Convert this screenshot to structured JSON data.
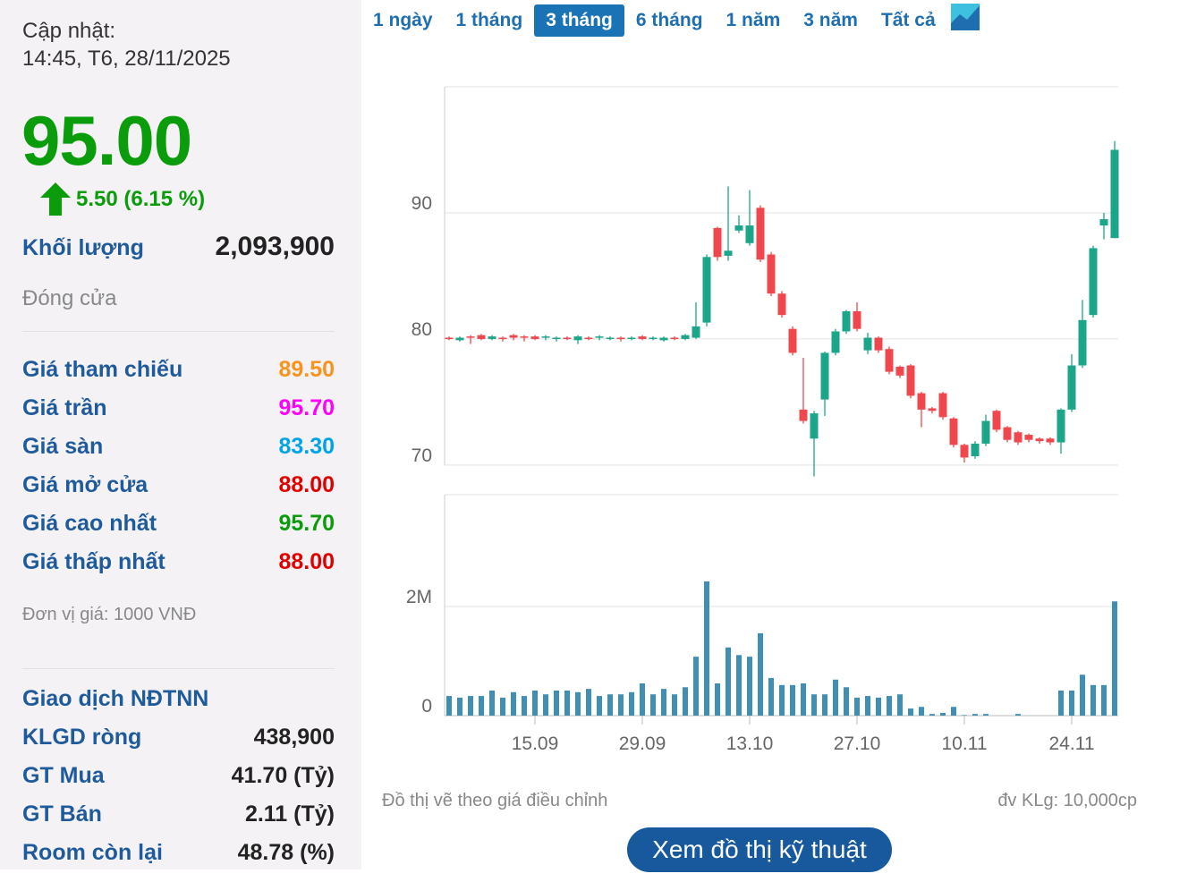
{
  "sidebar": {
    "update_label": "Cập nhật:",
    "update_time": "14:45, T6, 28/11/2025",
    "price": "95.00",
    "change": "5.50 (6.15 %)",
    "volume_label": "Khối lượng",
    "volume": "2,093,900",
    "status": "Đóng cửa",
    "prices": [
      {
        "label": "Giá tham chiếu",
        "value": "89.50",
        "color": "#f7941d"
      },
      {
        "label": "Giá trần",
        "value": "95.70",
        "color": "#ff00ff"
      },
      {
        "label": "Giá sàn",
        "value": "83.30",
        "color": "#00a3e6"
      },
      {
        "label": "Giá mở cửa",
        "value": "88.00",
        "color": "#e00000"
      },
      {
        "label": "Giá cao nhất",
        "value": "95.70",
        "color": "#0a9c0a"
      },
      {
        "label": "Giá thấp nhất",
        "value": "88.00",
        "color": "#e00000"
      }
    ],
    "unit_note": "Đơn vị giá: 1000 VNĐ",
    "foreign_title": "Giao dịch NĐTNN",
    "foreign": [
      {
        "label": "KLGD ròng",
        "value": "438,900"
      },
      {
        "label": "GT Mua",
        "value": "41.70 (Tỷ)"
      },
      {
        "label": "GT Bán",
        "value": "2.11 (Tỷ)"
      },
      {
        "label": "Room còn lại",
        "value": "48.78 (%)"
      }
    ]
  },
  "tabs": {
    "items": [
      "1 ngày",
      "1 tháng",
      "3 tháng",
      "6 tháng",
      "1 năm",
      "3 năm",
      "Tất cả"
    ],
    "active": 2
  },
  "chart_data": {
    "type": "candlestick",
    "categories": [
      null,
      null,
      null,
      null,
      null,
      null,
      null,
      null,
      "15.09",
      null,
      null,
      null,
      null,
      null,
      null,
      null,
      null,
      null,
      "29.09",
      null,
      null,
      null,
      null,
      null,
      null,
      null,
      null,
      null,
      "13.10",
      null,
      null,
      null,
      null,
      null,
      null,
      null,
      null,
      null,
      "27.10",
      null,
      null,
      null,
      null,
      null,
      null,
      null,
      null,
      null,
      "10.11",
      null,
      null,
      null,
      null,
      null,
      null,
      null,
      null,
      null,
      "24.11",
      null,
      null,
      null,
      null
    ],
    "open": [
      80.1,
      79.9,
      80.2,
      80.3,
      80.0,
      80.1,
      80.3,
      80.2,
      80.2,
      80.1,
      80.0,
      80.1,
      79.9,
      80.1,
      80.1,
      80.0,
      80.1,
      80.0,
      80.2,
      80.0,
      79.9,
      80.1,
      80.0,
      80.1,
      81.3,
      88.8,
      86.6,
      88.6,
      87.6,
      90.4,
      86.7,
      83.6,
      80.8,
      74.4,
      72.1,
      75.2,
      78.9,
      80.6,
      82.2,
      79.1,
      80.1,
      79.2,
      77.8,
      77.9,
      75.7,
      74.5,
      75.7,
      73.7,
      71.6,
      70.7,
      71.7,
      74.3,
      73.0,
      72.6,
      72.4,
      72.1,
      72.1,
      71.8,
      74.4,
      77.9,
      81.9,
      89.0,
      88.0
    ],
    "high": [
      80.2,
      80.2,
      80.3,
      80.4,
      80.3,
      80.2,
      80.4,
      80.3,
      80.3,
      80.3,
      80.2,
      80.2,
      80.3,
      80.2,
      80.3,
      80.2,
      80.2,
      80.2,
      80.3,
      80.2,
      80.2,
      80.2,
      80.4,
      82.9,
      86.7,
      88.9,
      92.1,
      89.8,
      91.8,
      90.6,
      86.9,
      83.8,
      81.0,
      78.5,
      74.3,
      79.0,
      80.8,
      82.3,
      82.9,
      80.5,
      80.2,
      79.4,
      77.9,
      78.0,
      75.8,
      74.6,
      75.8,
      73.8,
      71.7,
      71.9,
      74.0,
      74.4,
      73.1,
      72.7,
      72.5,
      72.2,
      72.2,
      74.5,
      78.8,
      83.1,
      87.4,
      90.0,
      95.7
    ],
    "low": [
      79.9,
      79.8,
      79.6,
      79.9,
      79.9,
      79.8,
      79.9,
      79.8,
      79.9,
      79.9,
      79.8,
      79.9,
      79.6,
      79.9,
      79.9,
      79.9,
      79.8,
      79.9,
      79.9,
      79.9,
      79.8,
      79.9,
      79.9,
      80.0,
      81.0,
      86.2,
      86.2,
      88.4,
      87.4,
      86.1,
      83.4,
      81.7,
      78.7,
      73.3,
      69.1,
      73.9,
      78.7,
      80.4,
      80.6,
      78.8,
      78.9,
      77.2,
      76.9,
      75.3,
      73.0,
      74.1,
      73.6,
      71.4,
      70.2,
      70.5,
      71.5,
      72.6,
      71.8,
      71.6,
      71.8,
      71.7,
      71.6,
      70.9,
      74.2,
      77.7,
      81.7,
      87.9,
      88.0
    ],
    "close": [
      80.0,
      80.1,
      80.1,
      80.0,
      80.2,
      80.0,
      80.1,
      80.1,
      80.0,
      80.2,
      80.1,
      80.0,
      80.2,
      80.0,
      80.2,
      80.1,
      80.0,
      80.1,
      80.0,
      80.1,
      80.1,
      80.0,
      80.3,
      81.0,
      86.5,
      86.5,
      87.0,
      89.0,
      89.0,
      86.3,
      83.6,
      81.9,
      78.9,
      73.5,
      74.1,
      78.9,
      80.6,
      82.2,
      80.8,
      80.1,
      79.1,
      77.4,
      77.1,
      75.5,
      74.4,
      74.3,
      73.8,
      71.6,
      70.6,
      71.7,
      73.5,
      72.8,
      72.0,
      71.8,
      72.0,
      71.9,
      71.8,
      74.4,
      77.9,
      81.5,
      87.2,
      89.5,
      95.0
    ],
    "up_color": "#1ba68a",
    "down_color": "#f0474f",
    "ylim": [
      69,
      100
    ],
    "yticks": [
      70,
      80,
      90
    ],
    "grid": true,
    "volume": {
      "values": [
        360000,
        330000,
        360000,
        360000,
        460000,
        330000,
        430000,
        360000,
        460000,
        390000,
        460000,
        460000,
        430000,
        490000,
        360000,
        390000,
        390000,
        430000,
        590000,
        390000,
        490000,
        390000,
        520000,
        1080000,
        2460000,
        590000,
        1250000,
        1110000,
        1080000,
        1510000,
        690000,
        560000,
        560000,
        590000,
        390000,
        390000,
        660000,
        520000,
        330000,
        360000,
        330000,
        360000,
        390000,
        130000,
        160000,
        30000,
        50000,
        160000,
        10000,
        30000,
        30000,
        0,
        0,
        30000,
        0,
        0,
        0,
        460000,
        460000,
        750000,
        560000,
        560000,
        2093900
      ],
      "color": "#3f8fb5",
      "ylim": [
        0,
        4050000
      ],
      "yticks": [
        0,
        {
          "value": 2000000,
          "label": "2M"
        }
      ]
    }
  },
  "footer": {
    "note": "Đồ thị vẽ theo giá điều chỉnh",
    "unit": "đv KLg: 10,000cp",
    "button": "Xem đồ thị kỹ thuật"
  }
}
